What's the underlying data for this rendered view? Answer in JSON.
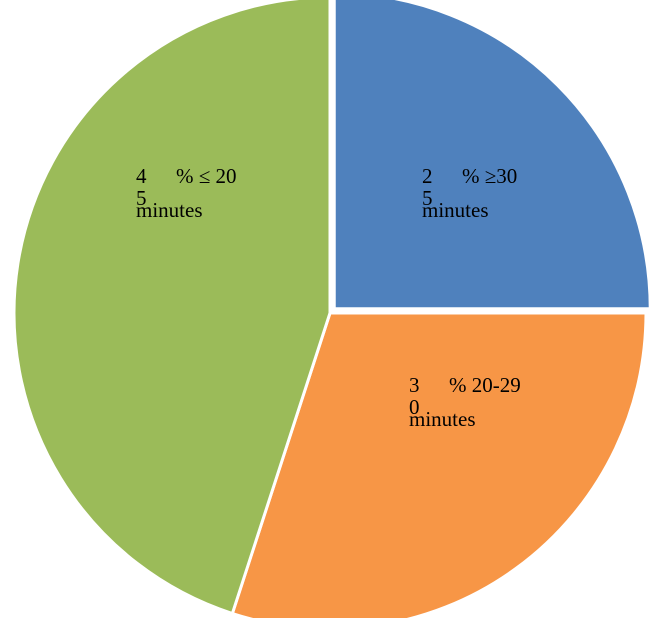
{
  "chart_data": {
    "type": "pie",
    "title": "",
    "start_angle": "12 o'clock",
    "direction": "clockwise",
    "slices": [
      {
        "label": "≥30 minutes",
        "value": 25,
        "color": "#4f81bd",
        "label_lines": [
          [
            "2",
            "% ≥30"
          ],
          [
            "5",
            ""
          ],
          [
            "minutes",
            ""
          ]
        ]
      },
      {
        "label": "20-29 minutes",
        "value": 30,
        "color": "#f79646",
        "label_lines": [
          [
            "3",
            "% 20-29"
          ],
          [
            "0",
            ""
          ],
          [
            "minutes",
            ""
          ]
        ]
      },
      {
        "label": "≤ 20 minutes",
        "value": 45,
        "color": "#9bbb59",
        "label_lines": [
          [
            "4",
            "% ≤ 20"
          ],
          [
            "5",
            ""
          ],
          [
            "minutes",
            ""
          ]
        ]
      }
    ]
  }
}
